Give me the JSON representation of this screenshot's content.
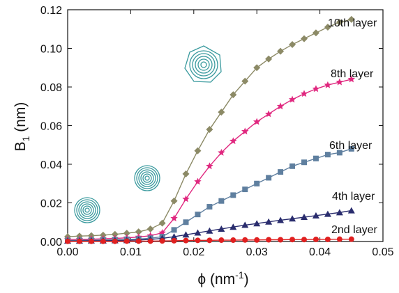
{
  "chart_data": {
    "type": "line",
    "xlabel_parts": [
      "ϕ (nm",
      "-1",
      ")"
    ],
    "ylabel_parts": [
      "B",
      "1",
      " (nm)"
    ],
    "x": [
      0,
      0.001875,
      0.00375,
      0.005625,
      0.0075,
      0.009375,
      0.01125,
      0.013125,
      0.015,
      0.016875,
      0.01875,
      0.020625,
      0.0225,
      0.024375,
      0.02625,
      0.028125,
      0.03,
      0.031875,
      0.03375,
      0.035625,
      0.0375,
      0.039375,
      0.04125,
      0.043125,
      0.045
    ],
    "series": [
      {
        "name": "10th layer",
        "color": "#8c8a66",
        "marker": "diamond",
        "values": [
          0.0025,
          0.0028,
          0.003,
          0.0033,
          0.0037,
          0.0043,
          0.005,
          0.0065,
          0.0095,
          0.021,
          0.035,
          0.047,
          0.058,
          0.067,
          0.076,
          0.083,
          0.09,
          0.0945,
          0.0985,
          0.102,
          0.105,
          0.108,
          0.111,
          0.1135,
          0.115
        ]
      },
      {
        "name": "8th layer",
        "color": "#e0287f",
        "marker": "star",
        "values": [
          0.001,
          0.0011,
          0.0012,
          0.0014,
          0.0016,
          0.0019,
          0.0023,
          0.003,
          0.0045,
          0.012,
          0.022,
          0.031,
          0.039,
          0.046,
          0.052,
          0.057,
          0.062,
          0.066,
          0.07,
          0.0735,
          0.0765,
          0.079,
          0.081,
          0.0825,
          0.084
        ]
      },
      {
        "name": "6th layer",
        "color": "#5f7f9f",
        "marker": "square",
        "values": [
          0.0005,
          0.0006,
          0.0007,
          0.0008,
          0.0009,
          0.0011,
          0.0013,
          0.0017,
          0.0025,
          0.006,
          0.01,
          0.014,
          0.018,
          0.021,
          0.024,
          0.027,
          0.03,
          0.033,
          0.036,
          0.039,
          0.041,
          0.043,
          0.045,
          0.046,
          0.048
        ]
      },
      {
        "name": "4th layer",
        "color": "#2a2d6e",
        "marker": "triangle",
        "values": [
          0.0003,
          0.0003,
          0.0004,
          0.0004,
          0.0005,
          0.0006,
          0.0008,
          0.0011,
          0.0016,
          0.0025,
          0.0035,
          0.0045,
          0.0055,
          0.0065,
          0.0075,
          0.0085,
          0.0093,
          0.0102,
          0.011,
          0.0118,
          0.0126,
          0.0134,
          0.0142,
          0.015,
          0.016
        ]
      },
      {
        "name": "2nd layer",
        "color": "#e02020",
        "marker": "circle",
        "values": [
          0.0001,
          0.0001,
          0.0001,
          0.0001,
          0.0001,
          0.0002,
          0.0002,
          0.0002,
          0.0003,
          0.0004,
          0.0005,
          0.0006,
          0.0006,
          0.0007,
          0.0007,
          0.0008,
          0.0008,
          0.0009,
          0.0009,
          0.001,
          0.001,
          0.0011,
          0.0011,
          0.0012,
          0.0012
        ]
      }
    ],
    "xlim": [
      0,
      0.05
    ],
    "xticks": [
      {
        "value": 0,
        "label": "0.00"
      },
      {
        "value": 0.01,
        "label": "0.01"
      },
      {
        "value": 0.02,
        "label": "0.02"
      },
      {
        "value": 0.03,
        "label": "0.03"
      },
      {
        "value": 0.04,
        "label": "0.04"
      },
      {
        "value": 0.05,
        "label": "0.05"
      }
    ],
    "ylim": [
      0,
      0.12
    ],
    "yticks": [
      {
        "value": 0,
        "label": "0.00"
      },
      {
        "value": 0.02,
        "label": "0.02"
      },
      {
        "value": 0.04,
        "label": "0.04"
      },
      {
        "value": 0.06,
        "label": "0.06"
      },
      {
        "value": 0.08,
        "label": "0.08"
      },
      {
        "value": 0.1,
        "label": "0.10"
      },
      {
        "value": 0.12,
        "label": "0.12"
      }
    ],
    "grid": false
  }
}
